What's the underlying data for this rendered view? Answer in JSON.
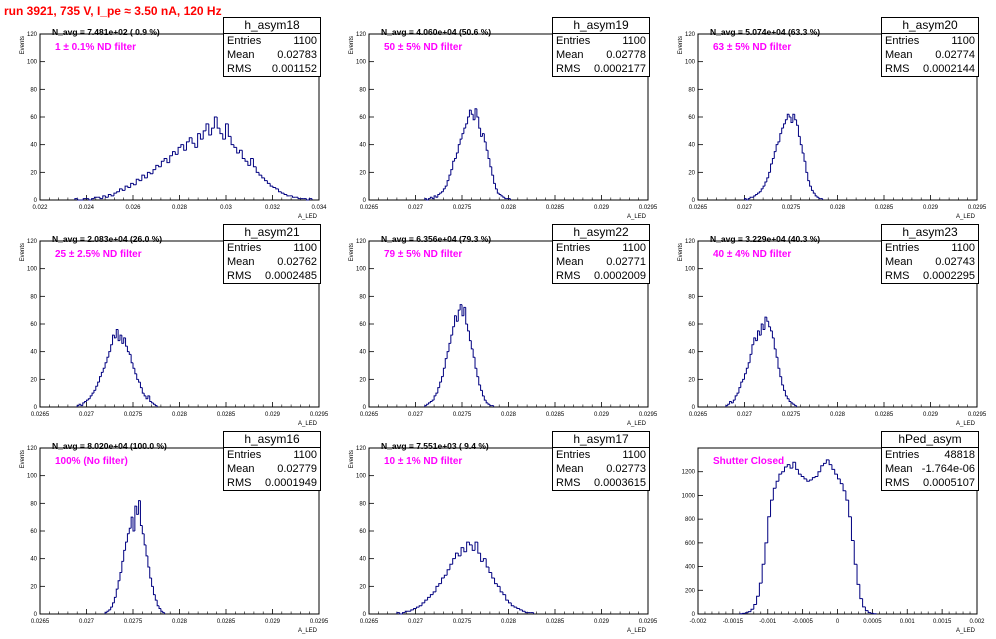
{
  "header": {
    "title": "run 3921,   735 V, I_pe ≈ 3.50 nA, 120 Hz"
  },
  "colors": {
    "header": "#ff0000",
    "filter_text": "#ff00ff",
    "histogram": "#000080"
  },
  "chart_data": [
    {
      "type": "bar",
      "name": "h_asym18",
      "navg": "N_avg = 7.481e+02 ( 0.9 %)",
      "filter": "1 ± 0.1% ND filter",
      "stats": {
        "entries_label": "Entries",
        "entries": "1100",
        "mean_label": "Mean",
        "mean": "0.02783",
        "rms_label": "RMS",
        "rms": "0.001152"
      },
      "xlabel": "A_LED",
      "ylabel": "Events",
      "xlim": [
        0.022,
        0.034
      ],
      "ylim": [
        0,
        120
      ],
      "xticks": [
        "0.022",
        "0.024",
        "0.026",
        "0.028",
        "0.03",
        "0.032",
        "0.034"
      ],
      "yticks": [
        "0",
        "20",
        "40",
        "60",
        "80",
        "100",
        "120"
      ],
      "x_start": 0.0235,
      "bin_width": 0.00012,
      "values": [
        1,
        0,
        0,
        1,
        1,
        0,
        1,
        2,
        2,
        1,
        3,
        2,
        4,
        3,
        5,
        6,
        8,
        7,
        10,
        9,
        12,
        11,
        15,
        14,
        18,
        16,
        20,
        19,
        22,
        25,
        24,
        28,
        30,
        27,
        32,
        35,
        33,
        38,
        40,
        36,
        42,
        45,
        41,
        38,
        48,
        44,
        50,
        55,
        47,
        52,
        60,
        52,
        48,
        44,
        55,
        46,
        40,
        38,
        34,
        36,
        30,
        28,
        25,
        30,
        24,
        20,
        18,
        16,
        14,
        12,
        10,
        9,
        8,
        6,
        5,
        4,
        3,
        3,
        2,
        2,
        1,
        1,
        1,
        0,
        1
      ]
    },
    {
      "type": "bar",
      "name": "h_asym19",
      "navg": "N_avg = 4.060e+04 (50.6 %)",
      "filter": "50 ± 5% ND filter",
      "stats": {
        "entries_label": "Entries",
        "entries": "1100",
        "mean_label": "Mean",
        "mean": "0.02778",
        "rms_label": "RMS",
        "rms": "0.0002177"
      },
      "xlabel": "A_LED",
      "ylabel": "Events",
      "xlim": [
        0.0265,
        0.0295
      ],
      "ylim": [
        0,
        120
      ],
      "xticks": [
        "0.0265",
        "0.027",
        "0.0275",
        "0.028",
        "0.0285",
        "0.029",
        "0.0295"
      ],
      "yticks": [
        "0",
        "20",
        "40",
        "60",
        "80",
        "100",
        "120"
      ],
      "x_start": 0.0271,
      "bin_width": 2e-05,
      "values": [
        1,
        0,
        1,
        2,
        1,
        3,
        2,
        4,
        5,
        6,
        8,
        10,
        14,
        18,
        22,
        28,
        30,
        34,
        40,
        44,
        48,
        52,
        55,
        60,
        65,
        62,
        58,
        66,
        60,
        52,
        46,
        48,
        42,
        36,
        30,
        24,
        18,
        12,
        8,
        5,
        4,
        3,
        2,
        1,
        1,
        1
      ]
    },
    {
      "type": "bar",
      "name": "h_asym20",
      "navg": "N_avg = 5.074e+04 (63.3 %)",
      "filter": "63 ± 5% ND filter",
      "stats": {
        "entries_label": "Entries",
        "entries": "1100",
        "mean_label": "Mean",
        "mean": "0.02774",
        "rms_label": "RMS",
        "rms": "0.0002144"
      },
      "xlabel": "A_LED",
      "ylabel": "Events",
      "xlim": [
        0.0265,
        0.0295
      ],
      "ylim": [
        0,
        120
      ],
      "xticks": [
        "0.0265",
        "0.027",
        "0.0275",
        "0.028",
        "0.0285",
        "0.029",
        "0.0295"
      ],
      "yticks": [
        "0",
        "20",
        "40",
        "60",
        "80",
        "100",
        "120"
      ],
      "x_start": 0.027,
      "bin_width": 2e-05,
      "values": [
        1,
        0,
        1,
        2,
        2,
        3,
        4,
        5,
        6,
        8,
        10,
        13,
        16,
        20,
        26,
        30,
        35,
        40,
        42,
        48,
        52,
        55,
        58,
        62,
        60,
        56,
        62,
        58,
        54,
        46,
        40,
        34,
        28,
        20,
        14,
        10,
        7,
        5,
        3,
        2,
        1,
        1
      ]
    },
    {
      "type": "bar",
      "name": "h_asym21",
      "navg": "N_avg = 2.083e+04 (26.0 %)",
      "filter": "25 ± 2.5% ND filter",
      "stats": {
        "entries_label": "Entries",
        "entries": "1100",
        "mean_label": "Mean",
        "mean": "0.02762",
        "rms_label": "RMS",
        "rms": "0.0002485"
      },
      "xlabel": "A_LED",
      "ylabel": "Events",
      "xlim": [
        0.0265,
        0.0295
      ],
      "ylim": [
        0,
        120
      ],
      "xticks": [
        "0.0265",
        "0.027",
        "0.0275",
        "0.028",
        "0.0285",
        "0.029",
        "0.0295"
      ],
      "yticks": [
        "0",
        "20",
        "40",
        "60",
        "80",
        "100",
        "120"
      ],
      "x_start": 0.0269,
      "bin_width": 2e-05,
      "values": [
        1,
        2,
        1,
        3,
        4,
        5,
        6,
        8,
        10,
        12,
        15,
        18,
        22,
        25,
        28,
        32,
        36,
        40,
        45,
        52,
        50,
        56,
        48,
        52,
        46,
        50,
        44,
        40,
        38,
        32,
        28,
        24,
        20,
        18,
        14,
        10,
        8,
        6,
        8,
        4,
        3,
        2,
        1
      ]
    },
    {
      "type": "bar",
      "name": "h_asym22",
      "navg": "N_avg = 6.356e+04 (79.3 %)",
      "filter": "79 ± 5% ND filter",
      "stats": {
        "entries_label": "Entries",
        "entries": "1100",
        "mean_label": "Mean",
        "mean": "0.02771",
        "rms_label": "RMS",
        "rms": "0.0002009"
      },
      "xlabel": "A_LED",
      "ylabel": "Events",
      "xlim": [
        0.0265,
        0.0295
      ],
      "ylim": [
        0,
        120
      ],
      "xticks": [
        "0.0265",
        "0.027",
        "0.0275",
        "0.028",
        "0.0285",
        "0.029",
        "0.0295"
      ],
      "yticks": [
        "0",
        "20",
        "40",
        "60",
        "80",
        "100",
        "120"
      ],
      "x_start": 0.0271,
      "bin_width": 2e-05,
      "values": [
        1,
        2,
        3,
        4,
        5,
        8,
        10,
        14,
        18,
        22,
        28,
        35,
        40,
        46,
        52,
        58,
        66,
        62,
        70,
        74,
        66,
        72,
        60,
        55,
        48,
        42,
        36,
        28,
        22,
        16,
        12,
        8,
        5,
        3,
        2,
        1,
        1
      ]
    },
    {
      "type": "bar",
      "name": "h_asym23",
      "navg": "N_avg = 3.229e+04 (40.3 %)",
      "filter": "40 ± 4% ND filter",
      "stats": {
        "entries_label": "Entries",
        "entries": "1100",
        "mean_label": "Mean",
        "mean": "0.02743",
        "rms_label": "RMS",
        "rms": "0.0002295"
      },
      "xlabel": "A_LED",
      "ylabel": "Events",
      "xlim": [
        0.0265,
        0.0295
      ],
      "ylim": [
        0,
        120
      ],
      "xticks": [
        "0.0265",
        "0.027",
        "0.0275",
        "0.028",
        "0.0285",
        "0.029",
        "0.0295"
      ],
      "yticks": [
        "0",
        "20",
        "40",
        "60",
        "80",
        "100",
        "120"
      ],
      "x_start": 0.0268,
      "bin_width": 2e-05,
      "values": [
        1,
        2,
        4,
        3,
        5,
        8,
        10,
        14,
        18,
        20,
        24,
        28,
        32,
        38,
        45,
        50,
        48,
        55,
        52,
        60,
        56,
        65,
        62,
        58,
        55,
        50,
        42,
        36,
        28,
        22,
        16,
        12,
        8,
        6,
        4,
        3,
        2,
        1
      ]
    },
    {
      "type": "bar",
      "name": "h_asym16",
      "navg": "N_avg = 8.020e+04 (100.0 %)",
      "filter": "100% (No filter)",
      "stats": {
        "entries_label": "Entries",
        "entries": "1100",
        "mean_label": "Mean",
        "mean": "0.02779",
        "rms_label": "RMS",
        "rms": "0.0001949"
      },
      "xlabel": "A_LED",
      "ylabel": "Events",
      "xlim": [
        0.0265,
        0.0295
      ],
      "ylim": [
        0,
        120
      ],
      "xticks": [
        "0.0265",
        "0.027",
        "0.0275",
        "0.028",
        "0.0285",
        "0.029",
        "0.0295"
      ],
      "yticks": [
        "0",
        "20",
        "40",
        "60",
        "80",
        "100",
        "120"
      ],
      "x_start": 0.0272,
      "bin_width": 2e-05,
      "values": [
        1,
        2,
        3,
        5,
        8,
        12,
        18,
        24,
        30,
        38,
        46,
        52,
        58,
        62,
        70,
        60,
        78,
        72,
        82,
        64,
        58,
        50,
        42,
        34,
        26,
        20,
        14,
        10,
        6,
        4,
        2,
        1
      ]
    },
    {
      "type": "bar",
      "name": "h_asym17",
      "navg": "N_avg = 7.551e+03 ( 9.4 %)",
      "filter": "10 ± 1% ND filter",
      "stats": {
        "entries_label": "Entries",
        "entries": "1100",
        "mean_label": "Mean",
        "mean": "0.02773",
        "rms_label": "RMS",
        "rms": "0.0003615"
      },
      "xlabel": "A_LED",
      "ylabel": "Events",
      "xlim": [
        0.0265,
        0.0295
      ],
      "ylim": [
        0,
        120
      ],
      "xticks": [
        "0.0265",
        "0.027",
        "0.0275",
        "0.028",
        "0.0285",
        "0.029",
        "0.0295"
      ],
      "yticks": [
        "0",
        "20",
        "40",
        "60",
        "80",
        "100",
        "120"
      ],
      "x_start": 0.0268,
      "bin_width": 3e-05,
      "values": [
        1,
        0,
        1,
        2,
        2,
        3,
        4,
        5,
        6,
        8,
        10,
        12,
        14,
        16,
        20,
        22,
        26,
        28,
        32,
        36,
        40,
        44,
        42,
        48,
        45,
        52,
        50,
        46,
        52,
        44,
        38,
        40,
        34,
        30,
        26,
        22,
        20,
        16,
        14,
        10,
        8,
        6,
        5,
        4,
        3,
        2,
        1,
        1,
        1
      ]
    },
    {
      "type": "bar",
      "name": "hPed_asym",
      "navg": "",
      "filter": "Shutter Closed",
      "stats": {
        "entries_label": "Entries",
        "entries": "48818",
        "mean_label": "Mean",
        "mean": "-1.764e-06",
        "rms_label": "RMS",
        "rms": "0.0005107"
      },
      "xlabel": "A_LED",
      "ylabel": "",
      "xlim": [
        -0.002,
        0.002
      ],
      "ylim": [
        0,
        1400
      ],
      "xticks": [
        "-0.002",
        "-0.0015",
        "-0.001",
        "-0.0005",
        "0",
        "0.0005",
        "0.001",
        "0.0015",
        "0.002"
      ],
      "yticks": [
        "0",
        "200",
        "400",
        "600",
        "800",
        "1000",
        "1200"
      ],
      "x_start": -0.0014,
      "bin_width": 4e-05,
      "values": [
        2,
        5,
        10,
        20,
        40,
        80,
        150,
        260,
        420,
        600,
        820,
        960,
        1060,
        1120,
        1180,
        1200,
        1240,
        1260,
        1230,
        1280,
        1220,
        1180,
        1160,
        1140,
        1120,
        1130,
        1150,
        1160,
        1200,
        1250,
        1270,
        1300,
        1260,
        1220,
        1180,
        1140,
        1100,
        1040,
        960,
        820,
        620,
        420,
        250,
        130,
        60,
        28,
        12,
        5,
        2
      ]
    }
  ]
}
